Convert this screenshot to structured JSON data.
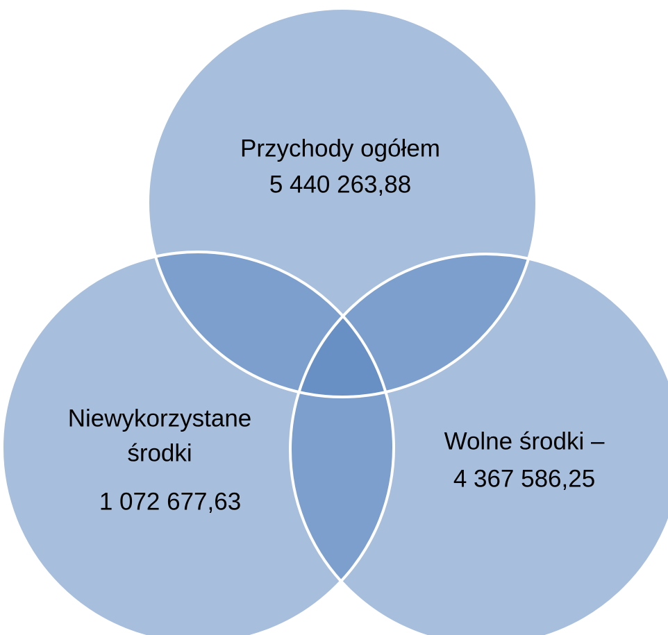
{
  "circles": [
    {
      "lines": [
        "Przychody ogółem",
        "5 440 263,88"
      ]
    },
    {
      "lines": [
        "Niewykorzystane",
        "środki",
        "1 072 677,63"
      ]
    },
    {
      "lines": [
        "Wolne środki –",
        "4 367 586,25"
      ]
    }
  ]
}
